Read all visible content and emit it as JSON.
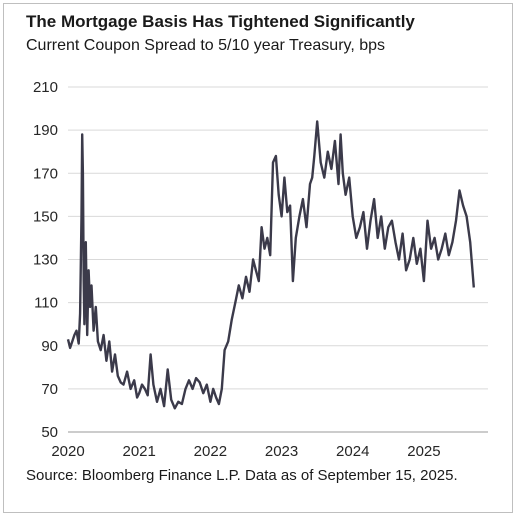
{
  "header": {
    "title": "The Mortgage Basis Has Tightened Significantly",
    "subtitle": "Current Coupon Spread to 5/10 year Treasury, bps"
  },
  "footer": {
    "source": "Source: Bloomberg Finance L.P. Data as of September 15, 2025."
  },
  "colors": {
    "line": "#3b3a4a",
    "grid": "#d9d9d9"
  },
  "chart_data": {
    "type": "line",
    "title": "The Mortgage Basis Has Tightened Significantly",
    "subtitle": "Current Coupon Spread to 5/10 year Treasury, bps",
    "xlabel": "",
    "ylabel": "",
    "xlim": [
      2020.0,
      2025.9
    ],
    "ylim": [
      50,
      210
    ],
    "yticks": [
      50,
      70,
      90,
      110,
      130,
      150,
      170,
      190,
      210
    ],
    "xticks": [
      2020,
      2021,
      2022,
      2023,
      2024,
      2025
    ],
    "xtick_labels": [
      "2020",
      "2021",
      "2022",
      "2023",
      "2024",
      "2025"
    ],
    "grid": true,
    "legend": "none",
    "series": [
      {
        "x": [
          2020.0,
          2020.03,
          2020.06,
          2020.09,
          2020.12,
          2020.15,
          2020.17,
          2020.19,
          2020.2,
          2020.21,
          2020.22,
          2020.23,
          2020.25,
          2020.27,
          2020.29,
          2020.31,
          2020.33,
          2020.36,
          2020.39,
          2020.42,
          2020.46,
          2020.5,
          2020.54,
          2020.58,
          2020.62,
          2020.66,
          2020.7,
          2020.74,
          2020.78,
          2020.83,
          2020.88,
          2020.93,
          2020.97,
          2021.0,
          2021.04,
          2021.08,
          2021.12,
          2021.16,
          2021.2,
          2021.25,
          2021.3,
          2021.35,
          2021.4,
          2021.45,
          2021.5,
          2021.55,
          2021.6,
          2021.65,
          2021.7,
          2021.75,
          2021.8,
          2021.85,
          2021.9,
          2021.95,
          2022.0,
          2022.04,
          2022.08,
          2022.12,
          2022.16,
          2022.2,
          2022.25,
          2022.3,
          2022.35,
          2022.4,
          2022.45,
          2022.5,
          2022.55,
          2022.6,
          2022.64,
          2022.68,
          2022.72,
          2022.76,
          2022.8,
          2022.84,
          2022.88,
          2022.92,
          2022.96,
          2023.0,
          2023.04,
          2023.08,
          2023.12,
          2023.16,
          2023.2,
          2023.25,
          2023.3,
          2023.35,
          2023.4,
          2023.43,
          2023.46,
          2023.5,
          2023.55,
          2023.6,
          2023.65,
          2023.7,
          2023.75,
          2023.8,
          2023.83,
          2023.86,
          2023.9,
          2023.95,
          2024.0,
          2024.05,
          2024.1,
          2024.15,
          2024.2,
          2024.25,
          2024.3,
          2024.35,
          2024.4,
          2024.45,
          2024.5,
          2024.55,
          2024.6,
          2024.65,
          2024.7,
          2024.75,
          2024.8,
          2024.85,
          2024.9,
          2024.95,
          2025.0,
          2025.05,
          2025.1,
          2025.15,
          2025.2,
          2025.25,
          2025.3,
          2025.35,
          2025.4,
          2025.45,
          2025.5,
          2025.55,
          2025.6,
          2025.65,
          2025.7
        ],
        "values": [
          93,
          89,
          92,
          95,
          97,
          91,
          105,
          150,
          188,
          170,
          120,
          100,
          138,
          95,
          125,
          108,
          118,
          97,
          108,
          92,
          88,
          95,
          83,
          92,
          78,
          86,
          76,
          73,
          72,
          78,
          70,
          74,
          66,
          68,
          72,
          70,
          67,
          86,
          72,
          64,
          70,
          62,
          79,
          65,
          61,
          64,
          63,
          70,
          74,
          70,
          75,
          73,
          68,
          72,
          64,
          70,
          66,
          63,
          70,
          88,
          92,
          102,
          110,
          118,
          112,
          122,
          115,
          130,
          125,
          120,
          145,
          135,
          140,
          132,
          175,
          178,
          160,
          150,
          168,
          152,
          155,
          120,
          140,
          150,
          158,
          145,
          165,
          168,
          178,
          194,
          175,
          168,
          180,
          172,
          185,
          165,
          188,
          170,
          160,
          168,
          150,
          140,
          145,
          152,
          135,
          148,
          158,
          140,
          150,
          135,
          145,
          148,
          138,
          130,
          142,
          125,
          130,
          140,
          128,
          135,
          120,
          148,
          135,
          140,
          130,
          135,
          142,
          132,
          138,
          148,
          162,
          155,
          150,
          138,
          117
        ]
      }
    ]
  }
}
